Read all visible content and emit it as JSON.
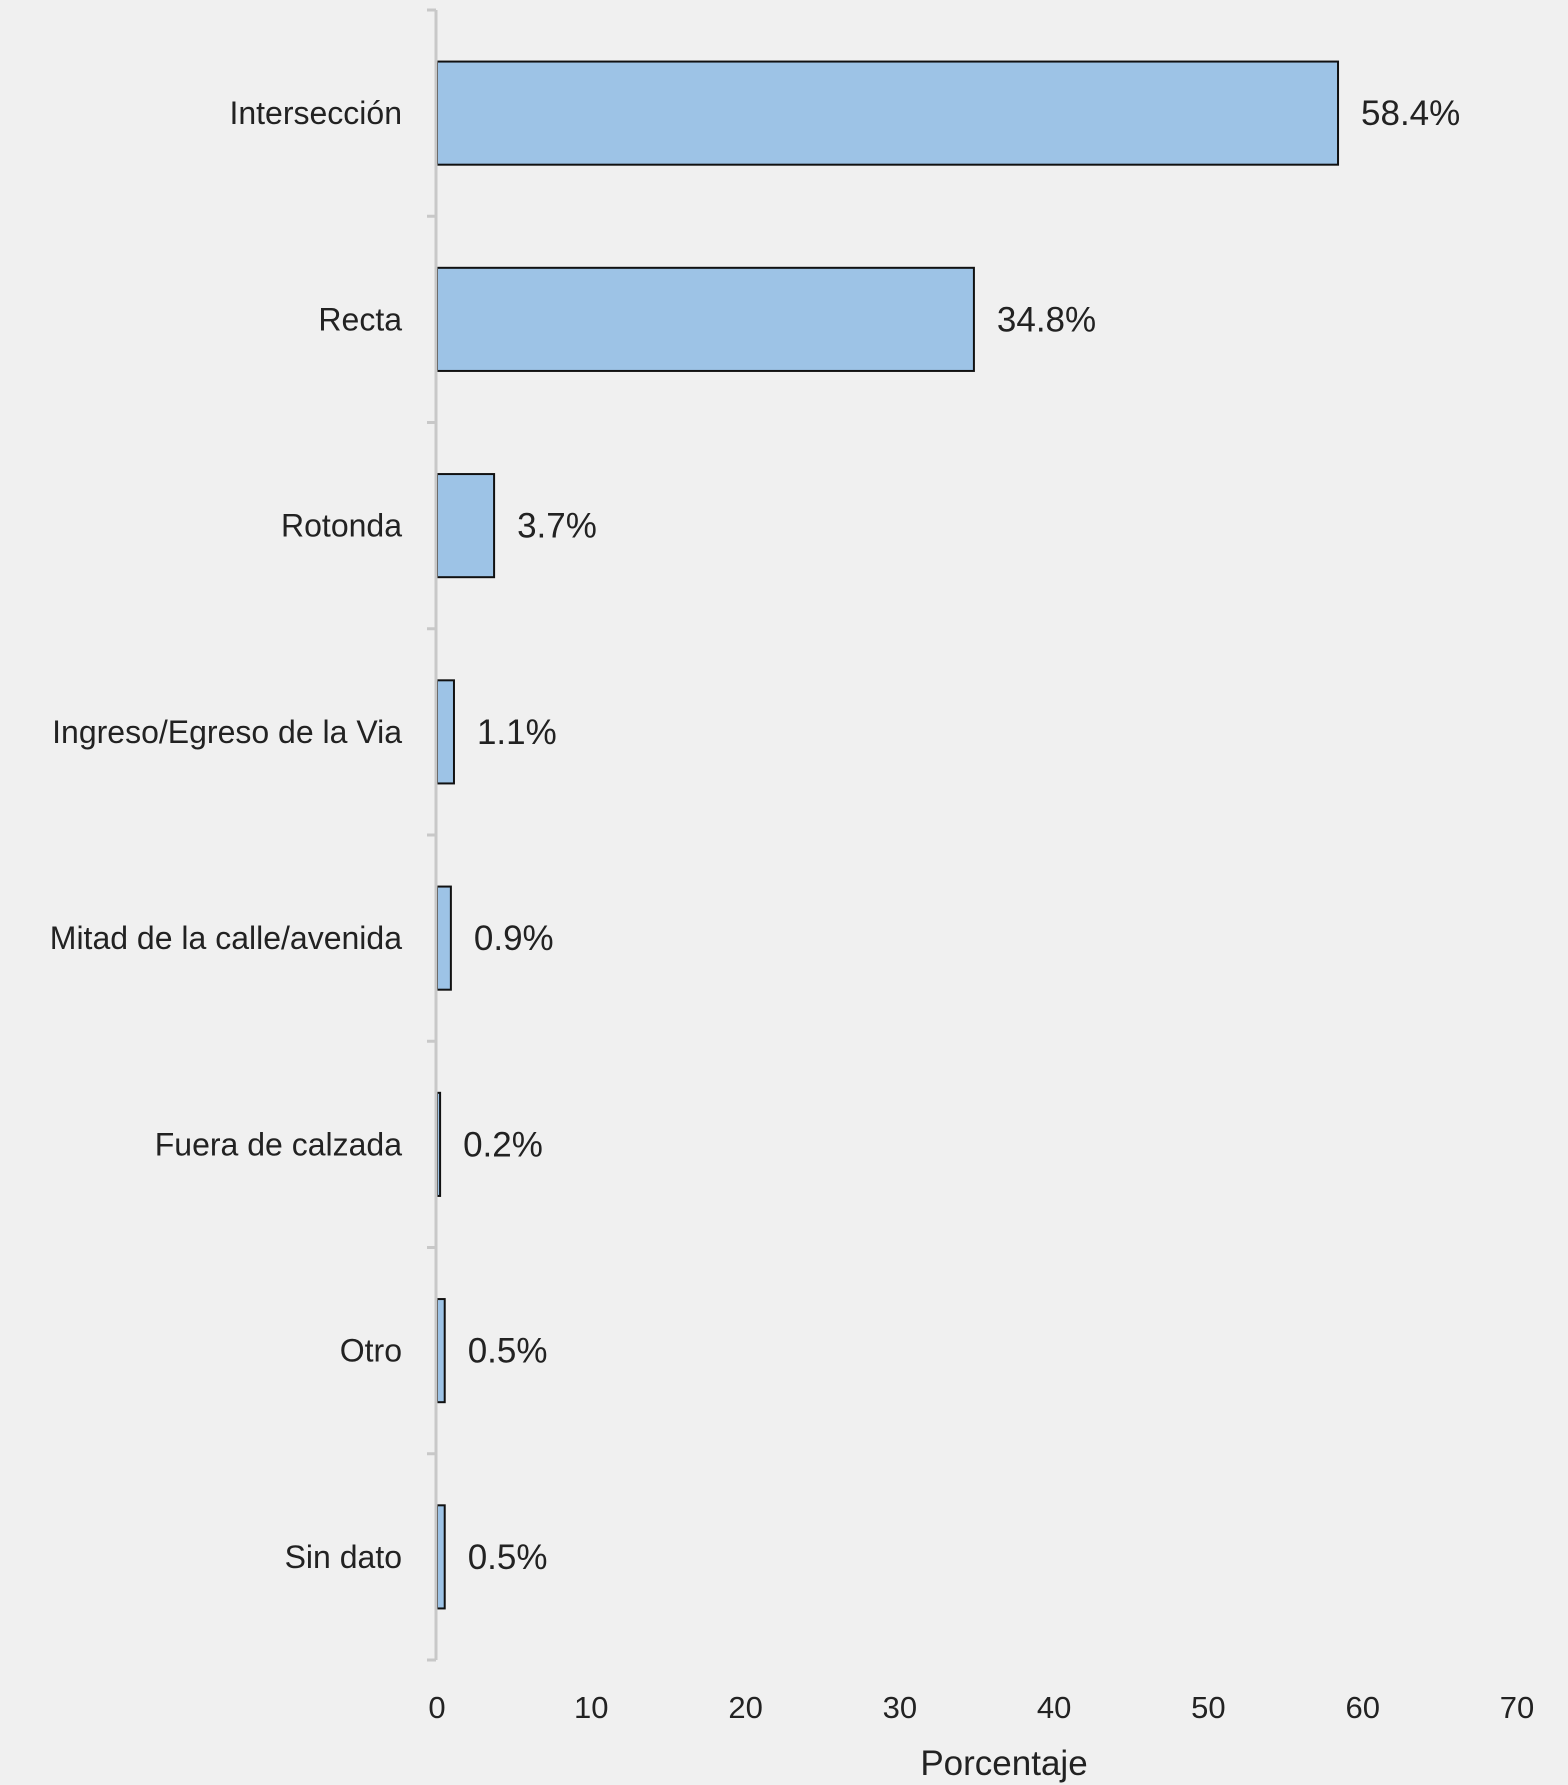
{
  "chart_data": {
    "type": "bar",
    "orientation": "horizontal",
    "categories": [
      "Intersección",
      "Recta",
      "Rotonda",
      "Ingreso/Egreso de la Via",
      "Mitad de la calle/avenida",
      "Fuera de calzada",
      "Otro",
      "Sin dato"
    ],
    "values": [
      58.4,
      34.8,
      3.7,
      1.1,
      0.9,
      0.2,
      0.5,
      0.5
    ],
    "value_labels": [
      "58.4%",
      "34.8%",
      "3.7%",
      "1.1%",
      "0.9%",
      "0.2%",
      "0.5%",
      "0.5%"
    ],
    "xlabel": "Porcentaje",
    "xlim": [
      0,
      70
    ],
    "xticks": [
      0,
      10,
      20,
      30,
      40,
      50,
      60,
      70
    ],
    "bar_color": "#9dc3e6",
    "bar_edge_color": "#111111",
    "grid": false,
    "legend": "none"
  }
}
